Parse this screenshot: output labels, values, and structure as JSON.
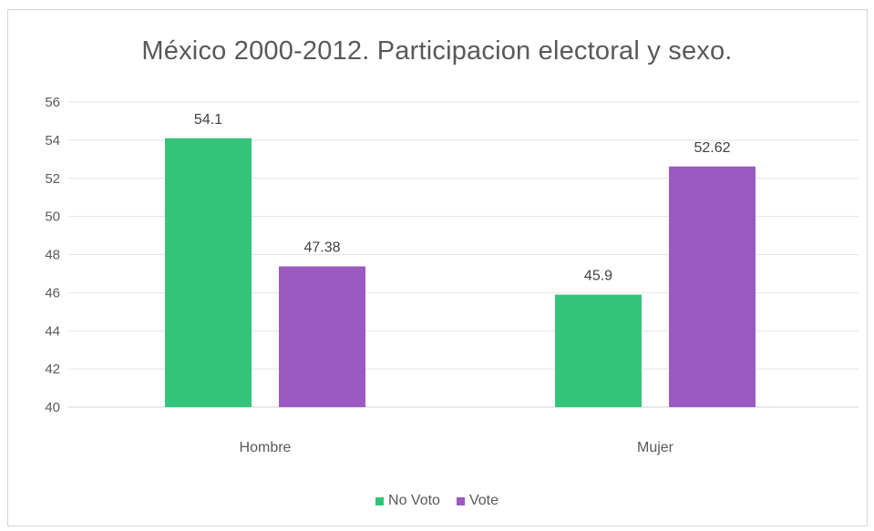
{
  "chart_data": {
    "type": "bar",
    "title": "México 2000-2012. Participacion electoral y sexo.",
    "xlabel": "",
    "ylabel": "",
    "categories": [
      "Hombre",
      "Mujer"
    ],
    "series": [
      {
        "name": "No Voto",
        "values": [
          54.1,
          45.9
        ],
        "labels": [
          "54.1",
          "45.9"
        ],
        "color": "#33c47a"
      },
      {
        "name": "Vote",
        "values": [
          47.38,
          52.62
        ],
        "labels": [
          "47.38",
          "52.62"
        ],
        "color": "#9b59c2"
      }
    ],
    "ylim": [
      40,
      56
    ],
    "yticks": [
      "40",
      "42",
      "44",
      "46",
      "48",
      "50",
      "52",
      "54",
      "56"
    ],
    "grid": true,
    "legend_position": "bottom"
  }
}
